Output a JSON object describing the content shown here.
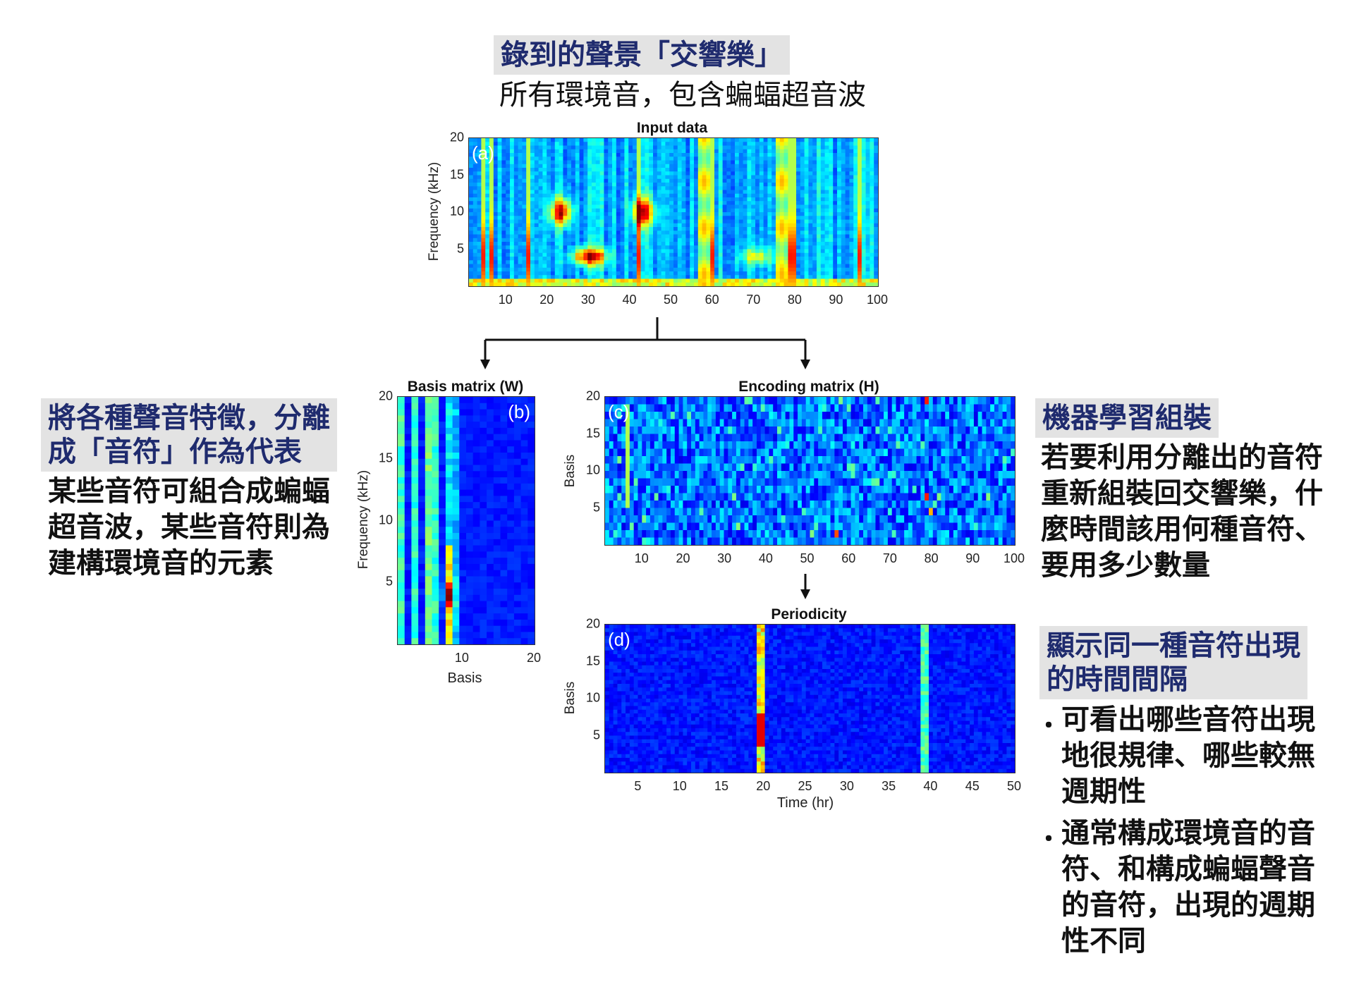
{
  "header": {
    "title": "錄到的聲景「交響樂」",
    "subtitle": "所有環境音，包含蝙蝠超音波"
  },
  "left": {
    "title_lines": [
      "將各種聲音特徵，分離",
      "成「音符」作為代表"
    ],
    "body_lines": [
      "某些音符可組合成蝙蝠",
      "超音波，某些音符則為",
      "建構環境音的元素"
    ]
  },
  "right_top": {
    "title": "機器學習組裝",
    "body_lines": [
      "若要利用分離出的音符",
      "重新組裝回交響樂，什",
      "麼時間該用何種音符、",
      "要用多少數量"
    ]
  },
  "right_bottom": {
    "title_lines": [
      "顯示同一種音符出現",
      "的時間間隔"
    ],
    "bullets": [
      {
        "mark": "・",
        "lines": [
          "可看出哪些音符出現",
          "地很規律、哪些較無",
          "週期性"
        ]
      },
      {
        "mark": "・",
        "lines": [
          "通常構成環境音的音",
          "符、和構成蝙蝠聲音",
          "的音符，出現的週期",
          "性不同"
        ]
      }
    ]
  },
  "chart_data": [
    {
      "type": "heatmap",
      "panel_label": "(a)",
      "title": "Input data",
      "xlabel": "",
      "ylabel": "Frequency (kHz)",
      "xticks": [
        "10",
        "20",
        "30",
        "40",
        "50",
        "60",
        "70",
        "80",
        "90",
        "100"
      ],
      "yticks": [
        "20",
        "15",
        "10",
        "5"
      ],
      "xlim": [
        1,
        100
      ],
      "ylim": [
        0,
        20
      ]
    },
    {
      "type": "heatmap",
      "panel_label": "(b)",
      "title": "Basis matrix (W)",
      "xlabel": "Basis",
      "ylabel": "Frequency (kHz)",
      "xticks": [
        "10",
        "20"
      ],
      "yticks": [
        "20",
        "15",
        "10",
        "5"
      ],
      "xlim": [
        1,
        20
      ],
      "ylim": [
        0,
        20
      ]
    },
    {
      "type": "heatmap",
      "panel_label": "(c)",
      "title": "Encoding matrix (H)",
      "xlabel": "",
      "ylabel": "Basis",
      "xticks": [
        "10",
        "20",
        "30",
        "40",
        "50",
        "60",
        "70",
        "80",
        "90",
        "100"
      ],
      "yticks": [
        "20",
        "15",
        "10",
        "5"
      ],
      "xlim": [
        1,
        100
      ],
      "ylim": [
        0,
        20
      ]
    },
    {
      "type": "heatmap",
      "panel_label": "(d)",
      "title": "Periodicity",
      "xlabel": "Time (hr)",
      "ylabel": "Basis",
      "xticks": [
        "5",
        "10",
        "15",
        "20",
        "25",
        "30",
        "35",
        "40",
        "45",
        "50"
      ],
      "yticks": [
        "20",
        "15",
        "10",
        "5"
      ],
      "xlim": [
        1,
        50
      ],
      "ylim": [
        0,
        20
      ]
    }
  ]
}
